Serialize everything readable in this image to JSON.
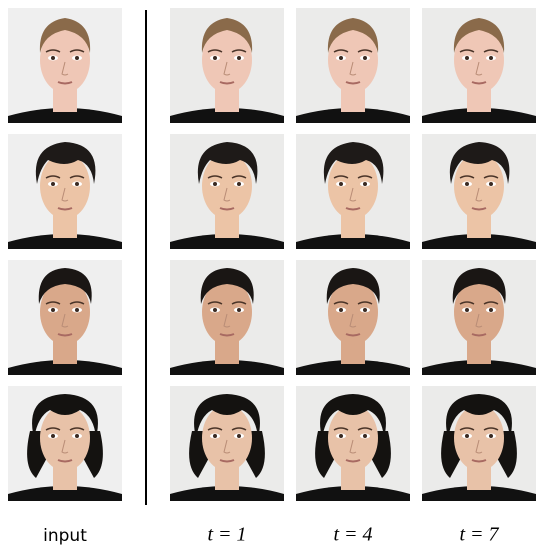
{
  "columns": [
    {
      "label": "input"
    },
    {
      "label": "t = 1"
    },
    {
      "label": "t = 4"
    },
    {
      "label": "t = 7"
    }
  ]
}
